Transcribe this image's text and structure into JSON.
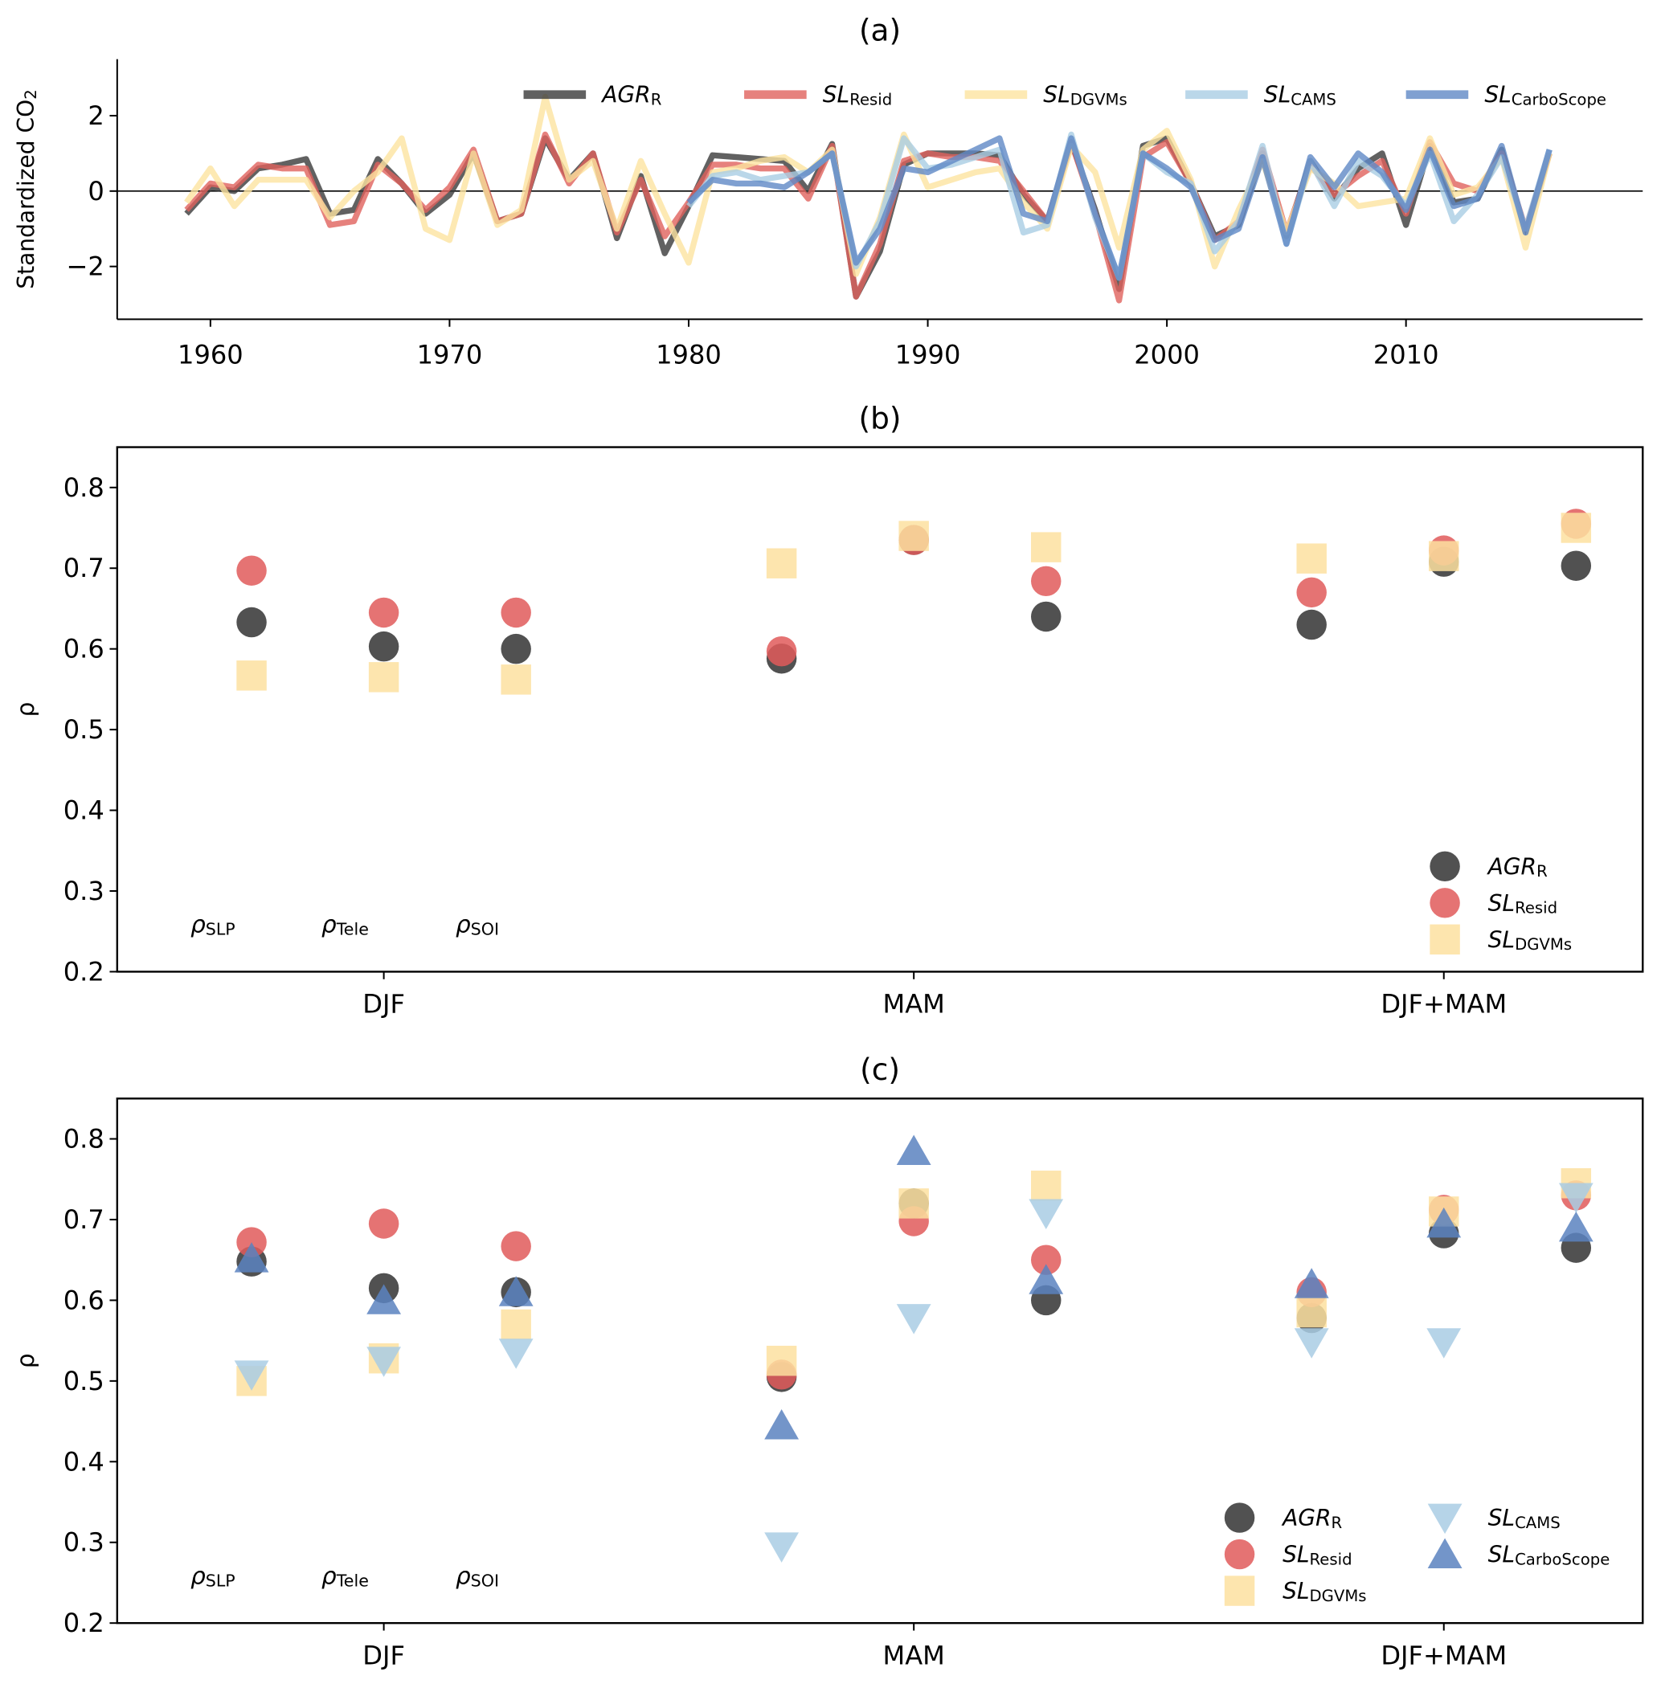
{
  "chart_data": [
    {
      "type": "line",
      "title": "(a)",
      "y_label": "Standardized CO_2",
      "x": [
        1959,
        1960,
        1961,
        1962,
        1963,
        1964,
        1965,
        1966,
        1967,
        1968,
        1969,
        1970,
        1971,
        1972,
        1973,
        1974,
        1975,
        1976,
        1977,
        1978,
        1979,
        1980,
        1981,
        1982,
        1983,
        1984,
        1985,
        1986,
        1987,
        1988,
        1989,
        1990,
        1991,
        1992,
        1993,
        1994,
        1995,
        1996,
        1997,
        1998,
        1999,
        2000,
        2001,
        2002,
        2003,
        2004,
        2005,
        2006,
        2007,
        2008,
        2009,
        2010,
        2011,
        2012,
        2013,
        2014,
        2015,
        2016
      ],
      "series": [
        {
          "name": "AGR_R",
          "color": "#3a3a3a",
          "values": [
            -0.6,
            0.1,
            0.0,
            0.6,
            0.7,
            0.85,
            -0.6,
            -0.5,
            0.85,
            0.2,
            -0.6,
            -0.1,
            1.0,
            -0.8,
            -0.6,
            1.4,
            0.3,
            1.0,
            -1.25,
            0.4,
            -1.65,
            -0.4,
            0.95,
            0.9,
            0.85,
            0.8,
            0.0,
            1.25,
            -2.8,
            -1.6,
            0.7,
            1.0,
            1.0,
            1.0,
            0.95,
            -0.1,
            -0.8,
            1.3,
            -0.5,
            -2.6,
            1.2,
            1.4,
            0.2,
            -1.2,
            -0.9,
            1.0,
            -1.2,
            0.8,
            -0.2,
            0.6,
            1.0,
            -0.9,
            1.2,
            -0.3,
            -0.2,
            1.1,
            -1.1,
            1.0
          ]
        },
        {
          "name": "SL_Resid",
          "color": "#e0625c",
          "values": [
            -0.5,
            0.2,
            0.1,
            0.7,
            0.6,
            0.6,
            -0.9,
            -0.8,
            0.7,
            0.2,
            -0.5,
            0.1,
            1.1,
            -0.8,
            -0.6,
            1.5,
            0.2,
            1.0,
            -1.1,
            0.3,
            -1.2,
            -0.3,
            0.7,
            0.7,
            0.6,
            0.6,
            -0.2,
            1.2,
            -2.8,
            -1.4,
            0.8,
            1.0,
            0.9,
            0.9,
            0.8,
            0.0,
            -0.8,
            1.3,
            -0.6,
            -2.9,
            0.9,
            1.3,
            0.2,
            -1.3,
            -0.8,
            1.1,
            -1.1,
            0.7,
            -0.1,
            0.4,
            0.8,
            -0.6,
            1.3,
            0.2,
            0.0,
            1.0,
            -1.0,
            1.0
          ]
        },
        {
          "name": "SL_DGVMs",
          "color": "#fde3a0",
          "values": [
            -0.3,
            0.6,
            -0.4,
            0.3,
            0.3,
            0.3,
            -0.7,
            0.0,
            0.5,
            1.4,
            -1.0,
            -1.3,
            1.0,
            -0.9,
            -0.5,
            2.5,
            0.3,
            0.8,
            -1.0,
            0.8,
            -0.6,
            -1.9,
            0.5,
            0.6,
            0.8,
            0.9,
            0.5,
            1.1,
            -2.2,
            -0.7,
            1.5,
            0.1,
            0.3,
            0.5,
            0.6,
            -0.3,
            -1.0,
            1.2,
            0.5,
            -1.5,
            1.1,
            1.6,
            0.3,
            -2.0,
            -0.5,
            0.8,
            -1.1,
            0.6,
            0.2,
            -0.4,
            -0.3,
            -0.2,
            1.4,
            -0.1,
            0.1,
            0.9,
            -1.5,
            1.0
          ]
        },
        {
          "name": "SL_CAMS",
          "color": "#a9cde4",
          "values": [
            null,
            null,
            null,
            null,
            null,
            null,
            null,
            null,
            null,
            null,
            null,
            null,
            null,
            null,
            null,
            null,
            null,
            null,
            null,
            null,
            null,
            -0.4,
            0.4,
            0.5,
            0.3,
            0.4,
            0.5,
            1.0,
            -2.0,
            -0.8,
            1.4,
            0.6,
            0.7,
            0.9,
            1.1,
            -1.1,
            -0.9,
            1.5,
            -0.7,
            -2.3,
            1.0,
            0.5,
            0.2,
            -1.6,
            -0.8,
            1.2,
            -1.4,
            0.8,
            -0.4,
            0.8,
            0.4,
            -0.4,
            1.0,
            -0.8,
            -0.1,
            0.9,
            -1.0,
            1.1
          ]
        },
        {
          "name": "SL_CarboScope",
          "color": "#5f88c6",
          "values": [
            null,
            null,
            null,
            null,
            null,
            null,
            null,
            null,
            null,
            null,
            null,
            null,
            null,
            null,
            null,
            null,
            null,
            null,
            null,
            null,
            null,
            -0.3,
            0.3,
            0.2,
            0.2,
            0.1,
            0.5,
            1.0,
            -1.9,
            -1.0,
            0.6,
            0.5,
            0.8,
            1.1,
            1.4,
            -0.6,
            -0.8,
            1.4,
            -0.6,
            -2.3,
            1.0,
            0.6,
            0.1,
            -1.3,
            -1.0,
            0.9,
            -1.4,
            0.9,
            0.1,
            1.0,
            0.5,
            -0.5,
            1.1,
            -0.4,
            -0.2,
            1.2,
            -1.1,
            1.1
          ]
        }
      ],
      "xlim": [
        1956.1,
        2019.9
      ],
      "ylim": [
        -3.4,
        3.5
      ],
      "xticks": [
        1960,
        1970,
        1980,
        1990,
        2000,
        2010
      ],
      "yticks": [
        {
          "value": -2,
          "label": "−2"
        },
        0,
        2
      ],
      "zero_line": true,
      "legend": "upper center",
      "legend_columns": 5
    },
    {
      "type": "scatter",
      "title": "(b)",
      "y_label": "ρ",
      "categories": [
        "DJF",
        "MAM",
        "DJF+MAM"
      ],
      "subgroups": [
        "ρ_SLP",
        "ρ_Tele",
        "ρ_SOI"
      ],
      "series": [
        {
          "name": "AGR_R",
          "color": "#333333",
          "marker": "o",
          "values": [
            [
              0.633,
              0.603,
              0.6
            ],
            [
              0.588,
              0.735,
              0.64
            ],
            [
              0.63,
              0.708,
              0.703
            ]
          ]
        },
        {
          "name": "SL_Resid",
          "color": "#e05a5a",
          "marker": "o",
          "values": [
            [
              0.697,
              0.645,
              0.645
            ],
            [
              0.597,
              0.735,
              0.684
            ],
            [
              0.67,
              0.722,
              0.755
            ]
          ]
        },
        {
          "name": "SL_DGVMs",
          "color": "#fde0a0",
          "marker": "s",
          "values": [
            [
              0.567,
              0.565,
              0.562
            ],
            [
              0.706,
              0.74,
              0.726
            ],
            [
              0.712,
              0.715,
              0.75
            ]
          ]
        }
      ],
      "ylim": [
        0.2,
        0.85
      ],
      "yticks": [
        0.2,
        0.3,
        0.4,
        0.5,
        0.6,
        0.7,
        0.8
      ],
      "legend": "lower right",
      "legend_columns": 1
    },
    {
      "type": "scatter",
      "title": "(c)",
      "y_label": "ρ",
      "categories": [
        "DJF",
        "MAM",
        "DJF+MAM"
      ],
      "subgroups": [
        "ρ_SLP",
        "ρ_Tele",
        "ρ_SOI"
      ],
      "series": [
        {
          "name": "AGR_R",
          "color": "#333333",
          "marker": "o",
          "values": [
            [
              0.648,
              0.615,
              0.61
            ],
            [
              0.505,
              0.72,
              0.6
            ],
            [
              0.578,
              0.683,
              0.665
            ]
          ]
        },
        {
          "name": "SL_Resid",
          "color": "#e05a5a",
          "marker": "o",
          "values": [
            [
              0.672,
              0.695,
              0.667
            ],
            [
              0.508,
              0.698,
              0.65
            ],
            [
              0.61,
              0.712,
              0.73
            ]
          ]
        },
        {
          "name": "SL_DGVMs",
          "color": "#fde0a0",
          "marker": "s",
          "values": [
            [
              0.5,
              0.528,
              0.57
            ],
            [
              0.525,
              0.72,
              0.742
            ],
            [
              0.585,
              0.71,
              0.745
            ]
          ]
        },
        {
          "name": "SL_CAMS",
          "color": "#a9cde4",
          "marker": "v",
          "values": [
            [
              0.508,
              0.525,
              0.535
            ],
            [
              0.295,
              0.578,
              0.708
            ],
            [
              0.548,
              0.548,
              0.728
            ]
          ]
        },
        {
          "name": "SL_CarboScope",
          "color": "#5b82c0",
          "marker": "^",
          "values": [
            [
              0.652,
              0.6,
              0.61
            ],
            [
              0.445,
              0.785,
              0.625
            ],
            [
              0.62,
              0.695,
              0.69
            ]
          ]
        }
      ],
      "ylim": [
        0.2,
        0.85
      ],
      "yticks": [
        0.2,
        0.3,
        0.4,
        0.5,
        0.6,
        0.7,
        0.8
      ],
      "legend": "lower right",
      "legend_columns": 2
    }
  ]
}
